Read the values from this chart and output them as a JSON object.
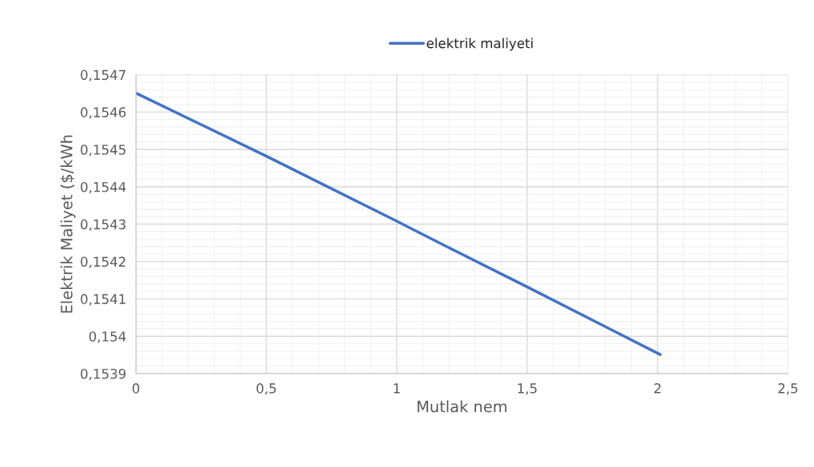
{
  "chart_data": {
    "type": "line",
    "xlabel": "Mutlak nem",
    "ylabel": "Elektrik Maliyet ($/kWh",
    "series": [
      {
        "name": "elektrik maliyeti",
        "color": "#4472c4",
        "x": [
          0,
          0.5,
          1,
          1.2,
          1.5,
          2.01
        ],
        "values": [
          0.154651,
          0.154482,
          0.154308,
          0.154237,
          0.154132,
          0.153951
        ]
      }
    ],
    "xlim": [
      0,
      2.5
    ],
    "xticks": [
      0,
      {
        "value": 0.5,
        "label": "0,5"
      },
      1,
      {
        "value": 1.5,
        "label": "1,5"
      },
      2,
      {
        "value": 2.5,
        "label": "2,5"
      }
    ],
    "ylim": [
      0.1539,
      0.1547
    ],
    "yticks": [
      {
        "value": 0.1539,
        "label": "0,1539"
      },
      {
        "value": 0.154,
        "label": "0,154"
      },
      {
        "value": 0.1541,
        "label": "0,1541"
      },
      {
        "value": 0.1542,
        "label": "0,1542"
      },
      {
        "value": 0.1543,
        "label": "0,1543"
      },
      {
        "value": 0.1544,
        "label": "0,1544"
      },
      {
        "value": 0.1545,
        "label": "0,1545"
      },
      {
        "value": 0.1546,
        "label": "0,1546"
      },
      {
        "value": 0.1547,
        "label": "0,1547"
      }
    ],
    "grid": true,
    "legend": "top",
    "marker": "none",
    "line_style": "solid"
  }
}
